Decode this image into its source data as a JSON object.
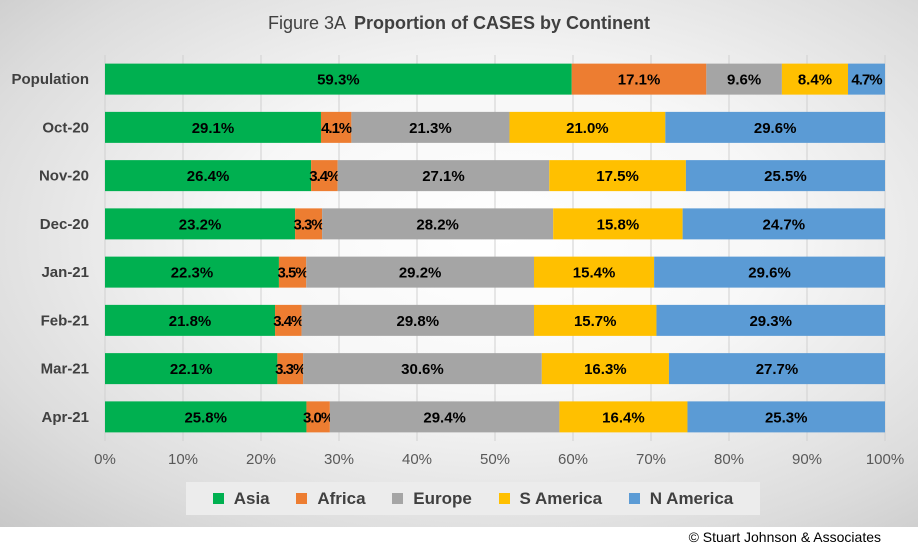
{
  "header": {
    "figure_label": "Figure  3A",
    "title": "Proportion of CASES by Continent"
  },
  "copyright": "© Stuart Johnson & Associates",
  "colors": {
    "Asia": "#00b050",
    "Africa": "#ed7d31",
    "Europe": "#a5a5a5",
    "S America": "#ffc000",
    "N America": "#5b9bd5"
  },
  "chart_data": {
    "type": "bar",
    "orientation": "horizontal",
    "stacked": "percent",
    "title": "Proportion of CASES by Continent",
    "categories": [
      "Population",
      "Oct-20",
      "Nov-20",
      "Dec-20",
      "Jan-21",
      "Feb-21",
      "Mar-21",
      "Apr-21"
    ],
    "series": [
      {
        "name": "Asia",
        "values": [
          59.3,
          29.1,
          26.4,
          23.2,
          22.3,
          21.8,
          22.1,
          25.8
        ]
      },
      {
        "name": "Africa",
        "values": [
          17.1,
          4.1,
          3.4,
          3.3,
          3.5,
          3.4,
          3.3,
          3.0
        ]
      },
      {
        "name": "Europe",
        "values": [
          9.6,
          21.3,
          27.1,
          28.2,
          29.2,
          29.8,
          30.6,
          29.4
        ]
      },
      {
        "name": "S America",
        "values": [
          8.4,
          21.0,
          17.5,
          15.8,
          15.4,
          15.7,
          16.3,
          16.4
        ]
      },
      {
        "name": "N America",
        "values": [
          4.7,
          29.6,
          25.5,
          24.7,
          29.6,
          29.3,
          27.7,
          25.3
        ]
      }
    ],
    "xlim": [
      0,
      100
    ],
    "xticks": [
      "0%",
      "10%",
      "20%",
      "30%",
      "40%",
      "50%",
      "60%",
      "70%",
      "80%",
      "90%",
      "100%"
    ],
    "grid": true,
    "legend": "bottom"
  }
}
